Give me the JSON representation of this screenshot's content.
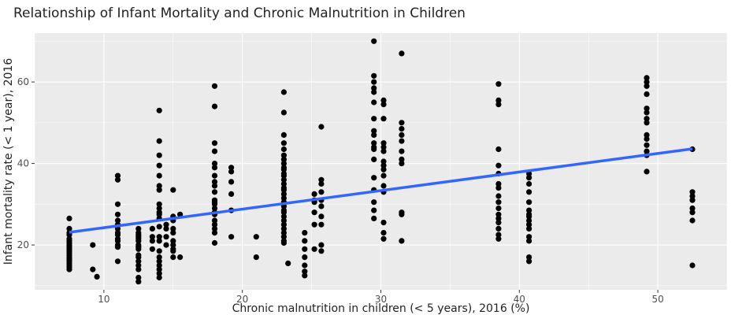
{
  "chart_data": {
    "type": "scatter",
    "title": "Relationship of Infant Mortality and Chronic Malnutrition in Children",
    "xlabel": "Chronic malnutrition in children (< 5 years), 2016 (%)",
    "ylabel": "Infant mortality rate (< 1 year), 2016",
    "xlim": [
      5,
      55
    ],
    "ylim": [
      9,
      72
    ],
    "xticks": [
      10,
      20,
      30,
      40,
      50
    ],
    "yticks": [
      20,
      40,
      60
    ],
    "grid": true,
    "colors": {
      "points": "#000000",
      "trend": "#3366ff",
      "panel": "#ebebeb",
      "grid": "#ffffff"
    },
    "trend_line": {
      "x": [
        7.5,
        52.5
      ],
      "y": [
        23.1,
        43.6
      ]
    },
    "series": [
      {
        "values": [
          [
            7.5,
            26.5
          ],
          [
            7.5,
            24
          ],
          [
            7.5,
            23
          ],
          [
            7.5,
            22.5
          ],
          [
            7.5,
            21.5
          ],
          [
            7.5,
            21
          ],
          [
            7.5,
            20.5
          ],
          [
            7.5,
            20
          ],
          [
            7.5,
            19.5
          ],
          [
            7.5,
            19
          ],
          [
            7.5,
            18.5
          ],
          [
            7.5,
            18
          ],
          [
            7.5,
            17.5
          ],
          [
            7.5,
            17
          ],
          [
            7.5,
            16.5
          ],
          [
            7.5,
            16
          ],
          [
            7.5,
            15.5
          ],
          [
            7.5,
            15
          ],
          [
            7.5,
            14.5
          ],
          [
            7.5,
            14
          ],
          [
            9.2,
            20
          ],
          [
            9.2,
            14
          ],
          [
            9.5,
            12.2
          ],
          [
            11,
            37
          ],
          [
            11,
            36
          ],
          [
            11,
            30
          ],
          [
            11,
            27.5
          ],
          [
            11,
            26
          ],
          [
            11,
            25
          ],
          [
            11,
            24
          ],
          [
            11,
            23
          ],
          [
            11,
            22.5
          ],
          [
            11,
            21.5
          ],
          [
            11,
            21
          ],
          [
            11,
            20
          ],
          [
            11,
            19.5
          ],
          [
            11,
            16
          ],
          [
            12.5,
            24
          ],
          [
            12.5,
            23
          ],
          [
            12.5,
            22.5
          ],
          [
            12.5,
            22
          ],
          [
            12.5,
            21.5
          ],
          [
            12.5,
            21
          ],
          [
            12.5,
            20
          ],
          [
            12.5,
            19.5
          ],
          [
            12.5,
            19
          ],
          [
            12.5,
            17.5
          ],
          [
            12.5,
            17
          ],
          [
            12.5,
            16
          ],
          [
            12.5,
            15
          ],
          [
            12.5,
            14
          ],
          [
            12.5,
            12
          ],
          [
            12.5,
            11
          ],
          [
            13.5,
            24
          ],
          [
            13.5,
            22
          ],
          [
            13.5,
            21
          ],
          [
            13.5,
            19
          ],
          [
            14,
            53
          ],
          [
            14,
            45.5
          ],
          [
            14,
            42
          ],
          [
            14,
            39.5
          ],
          [
            14,
            37
          ],
          [
            14,
            34.5
          ],
          [
            14,
            33.5
          ],
          [
            14,
            30
          ],
          [
            14,
            29
          ],
          [
            14,
            28
          ],
          [
            14,
            27.5
          ],
          [
            14,
            26.5
          ],
          [
            14,
            24.5
          ],
          [
            14,
            22
          ],
          [
            14,
            21
          ],
          [
            14,
            18.5
          ],
          [
            14,
            17
          ],
          [
            14,
            16
          ],
          [
            14,
            15
          ],
          [
            14,
            14
          ],
          [
            14,
            13
          ],
          [
            14,
            12
          ],
          [
            14.5,
            25
          ],
          [
            14.5,
            24
          ],
          [
            14.5,
            22
          ],
          [
            14.5,
            20
          ],
          [
            15,
            33.5
          ],
          [
            15,
            27
          ],
          [
            15,
            26
          ],
          [
            15,
            24
          ],
          [
            15,
            23
          ],
          [
            15,
            21
          ],
          [
            15,
            20
          ],
          [
            15,
            19
          ],
          [
            15,
            18.5
          ],
          [
            15,
            17
          ],
          [
            15.5,
            27.5
          ],
          [
            15.5,
            17
          ],
          [
            18,
            59
          ],
          [
            18,
            54
          ],
          [
            18,
            45
          ],
          [
            18,
            43
          ],
          [
            18,
            40
          ],
          [
            18,
            39
          ],
          [
            18,
            37
          ],
          [
            18,
            35.5
          ],
          [
            18,
            34.5
          ],
          [
            18,
            33
          ],
          [
            18,
            31
          ],
          [
            18,
            30.5
          ],
          [
            18,
            30
          ],
          [
            18,
            29
          ],
          [
            18,
            28
          ],
          [
            18,
            27.5
          ],
          [
            18,
            26
          ],
          [
            18,
            25
          ],
          [
            18,
            24
          ],
          [
            18,
            23
          ],
          [
            18,
            20.5
          ],
          [
            19.2,
            39
          ],
          [
            19.2,
            38
          ],
          [
            19.2,
            35.5
          ],
          [
            19.2,
            32.5
          ],
          [
            19.2,
            28.5
          ],
          [
            19.2,
            22
          ],
          [
            21,
            22
          ],
          [
            21,
            17
          ],
          [
            23,
            57.5
          ],
          [
            23,
            52.5
          ],
          [
            23,
            47
          ],
          [
            23,
            45
          ],
          [
            23,
            43.5
          ],
          [
            23,
            42
          ],
          [
            23,
            41
          ],
          [
            23,
            40
          ],
          [
            23,
            39
          ],
          [
            23,
            38.5
          ],
          [
            23,
            37.5
          ],
          [
            23,
            37
          ],
          [
            23,
            36
          ],
          [
            23,
            35
          ],
          [
            23,
            34
          ],
          [
            23,
            33.5
          ],
          [
            23,
            32.5
          ],
          [
            23,
            31.5
          ],
          [
            23,
            30.5
          ],
          [
            23,
            29.5
          ],
          [
            23,
            28.5
          ],
          [
            23,
            28
          ],
          [
            23,
            27
          ],
          [
            23,
            26
          ],
          [
            23,
            25
          ],
          [
            23,
            24
          ],
          [
            23,
            23
          ],
          [
            23,
            22
          ],
          [
            23,
            21
          ],
          [
            23,
            20.5
          ],
          [
            23.3,
            15.5
          ],
          [
            24.5,
            23
          ],
          [
            24.5,
            21
          ],
          [
            24.5,
            19
          ],
          [
            24.5,
            17
          ],
          [
            24.5,
            15
          ],
          [
            24.5,
            13.5
          ],
          [
            24.5,
            12.5
          ],
          [
            25.2,
            32.5
          ],
          [
            25.2,
            31
          ],
          [
            25.2,
            30.5
          ],
          [
            25.2,
            28
          ],
          [
            25.2,
            25
          ],
          [
            25.2,
            19
          ],
          [
            25.7,
            49
          ],
          [
            25.7,
            36
          ],
          [
            25.7,
            35
          ],
          [
            25.7,
            33
          ],
          [
            25.7,
            31
          ],
          [
            25.7,
            29.5
          ],
          [
            25.7,
            27
          ],
          [
            25.7,
            25
          ],
          [
            25.7,
            20
          ],
          [
            25.7,
            18.5
          ],
          [
            29.5,
            70
          ],
          [
            29.5,
            61.5
          ],
          [
            29.5,
            60
          ],
          [
            29.5,
            58.5
          ],
          [
            29.5,
            57.5
          ],
          [
            29.5,
            55
          ],
          [
            29.5,
            51
          ],
          [
            29.5,
            48
          ],
          [
            29.5,
            47
          ],
          [
            29.5,
            45
          ],
          [
            29.5,
            44
          ],
          [
            29.5,
            43.5
          ],
          [
            29.5,
            41
          ],
          [
            29.5,
            36.5
          ],
          [
            29.5,
            33.5
          ],
          [
            29.5,
            30.5
          ],
          [
            29.5,
            28.5
          ],
          [
            29.5,
            26.5
          ],
          [
            30.2,
            55.5
          ],
          [
            30.2,
            54.5
          ],
          [
            30.2,
            51
          ],
          [
            30.2,
            45
          ],
          [
            30.2,
            44
          ],
          [
            30.2,
            43
          ],
          [
            30.2,
            40.5
          ],
          [
            30.2,
            39.5
          ],
          [
            30.2,
            38.5
          ],
          [
            30.2,
            37
          ],
          [
            30.2,
            34.5
          ],
          [
            30.2,
            33
          ],
          [
            30.2,
            25.5
          ],
          [
            30.2,
            23
          ],
          [
            30.2,
            21.5
          ],
          [
            31.5,
            67
          ],
          [
            31.5,
            50
          ],
          [
            31.5,
            48.5
          ],
          [
            31.5,
            47
          ],
          [
            31.5,
            45.5
          ],
          [
            31.5,
            43
          ],
          [
            31.5,
            41
          ],
          [
            31.5,
            40
          ],
          [
            31.5,
            28
          ],
          [
            31.5,
            27.5
          ],
          [
            31.5,
            21
          ],
          [
            38.5,
            59.5
          ],
          [
            38.5,
            55.5
          ],
          [
            38.5,
            54.5
          ],
          [
            38.5,
            43.5
          ],
          [
            38.5,
            39.5
          ],
          [
            38.5,
            37.5
          ],
          [
            38.5,
            35
          ],
          [
            38.5,
            34
          ],
          [
            38.5,
            32
          ],
          [
            38.5,
            30.5
          ],
          [
            38.5,
            29
          ],
          [
            38.5,
            27.5
          ],
          [
            38.5,
            26.5
          ],
          [
            38.5,
            25.5
          ],
          [
            38.5,
            24
          ],
          [
            38.5,
            22.5
          ],
          [
            38.5,
            21.5
          ],
          [
            40.7,
            37.5
          ],
          [
            40.7,
            36.5
          ],
          [
            40.7,
            35
          ],
          [
            40.7,
            33
          ],
          [
            40.7,
            30.5
          ],
          [
            40.7,
            28.5
          ],
          [
            40.7,
            27.5
          ],
          [
            40.7,
            27
          ],
          [
            40.7,
            26
          ],
          [
            40.7,
            25
          ],
          [
            40.7,
            24
          ],
          [
            40.7,
            22
          ],
          [
            40.7,
            21
          ],
          [
            40.7,
            17
          ],
          [
            40.7,
            16
          ],
          [
            49.2,
            61
          ],
          [
            49.2,
            60
          ],
          [
            49.2,
            59
          ],
          [
            49.2,
            57
          ],
          [
            49.2,
            53.5
          ],
          [
            49.2,
            52.5
          ],
          [
            49.2,
            51
          ],
          [
            49.2,
            50
          ],
          [
            49.2,
            47
          ],
          [
            49.2,
            46
          ],
          [
            49.2,
            44.5
          ],
          [
            49.2,
            43
          ],
          [
            49.2,
            42
          ],
          [
            49.2,
            38
          ],
          [
            52.5,
            43.5
          ],
          [
            52.5,
            33
          ],
          [
            52.5,
            32
          ],
          [
            52.5,
            31
          ],
          [
            52.5,
            29
          ],
          [
            52.5,
            28
          ],
          [
            52.5,
            26
          ],
          [
            52.5,
            15
          ]
        ]
      }
    ]
  }
}
